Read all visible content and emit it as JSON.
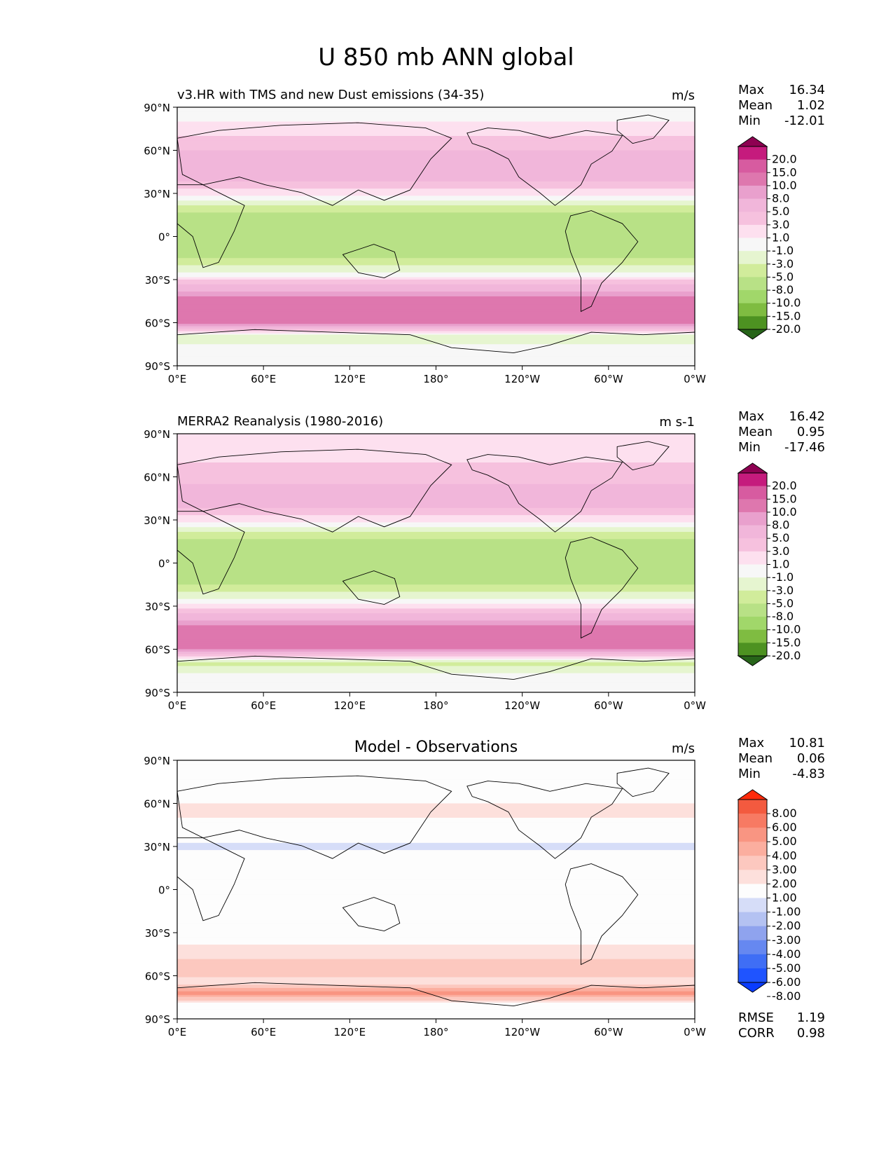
{
  "figure_title": "U 850 mb ANN global",
  "colors": {
    "seq_colors": [
      "#276419",
      "#4d9221",
      "#7fbc41",
      "#a1d76a",
      "#b8e186",
      "#d1ec9b",
      "#e6f5d0",
      "#f7f7f7",
      "#fde0ef",
      "#f6c1de",
      "#f1b6da",
      "#e9a0cd",
      "#de77ae",
      "#d75ba0",
      "#c51b7d",
      "#8e0152"
    ],
    "diff_colors": [
      "#0a3cff",
      "#1f54ff",
      "#3f6ef5",
      "#6688f0",
      "#8fa3ee",
      "#b4c2f2",
      "#d6ddf8",
      "#fdfdfd",
      "#fde0dc",
      "#fcc8bf",
      "#fbae9f",
      "#f99582",
      "#f77a63",
      "#f35a3f",
      "#ff2a0a"
    ]
  },
  "chart_data": [
    {
      "type": "contour-map",
      "id": "model",
      "title": "v3.HR with TMS and new Dust emissions (34-35)",
      "units": "m/s",
      "stats": [
        {
          "label": "Max",
          "value": "16.34"
        },
        {
          "label": "Mean",
          "value": "1.02"
        },
        {
          "label": "Min",
          "value": "-12.01"
        }
      ],
      "colorbar_levels": [
        "20.0",
        "15.0",
        "10.0",
        "8.0",
        "5.0",
        "3.0",
        "1.0",
        "-1.0",
        "-3.0",
        "-5.0",
        "-8.0",
        "-10.0",
        "-15.0",
        "-20.0"
      ],
      "xticks": [
        "0°E",
        "60°E",
        "120°E",
        "180°",
        "120°W",
        "60°W",
        "0°W"
      ],
      "yticks": [
        "90°N",
        "60°N",
        "30°N",
        "0°",
        "30°S",
        "60°S",
        "90°S"
      ],
      "lon_range": [
        0,
        360
      ],
      "lat_range": [
        -90,
        90
      ],
      "zonal_profile": [
        {
          "lat": 90,
          "u": 0
        },
        {
          "lat": 80,
          "u": 1
        },
        {
          "lat": 70,
          "u": 3
        },
        {
          "lat": 60,
          "u": 5
        },
        {
          "lat": 45,
          "u": 8
        },
        {
          "lat": 35,
          "u": 4
        },
        {
          "lat": 25,
          "u": -1
        },
        {
          "lat": 15,
          "u": -6
        },
        {
          "lat": 5,
          "u": -7
        },
        {
          "lat": -5,
          "u": -5
        },
        {
          "lat": -15,
          "u": -5
        },
        {
          "lat": -25,
          "u": -1
        },
        {
          "lat": -35,
          "u": 6
        },
        {
          "lat": -45,
          "u": 12
        },
        {
          "lat": -52,
          "u": 14
        },
        {
          "lat": -60,
          "u": 11
        },
        {
          "lat": -65,
          "u": 4
        },
        {
          "lat": -70,
          "u": -3
        },
        {
          "lat": -80,
          "u": 1
        },
        {
          "lat": -90,
          "u": 0
        }
      ]
    },
    {
      "type": "contour-map",
      "id": "obs",
      "title": "MERRA2 Reanalysis (1980-2016)",
      "units": "m s-1",
      "stats": [
        {
          "label": "Max",
          "value": "16.42"
        },
        {
          "label": "Mean",
          "value": "0.95"
        },
        {
          "label": "Min",
          "value": "-17.46"
        }
      ],
      "colorbar_levels": [
        "20.0",
        "15.0",
        "10.0",
        "8.0",
        "5.0",
        "3.0",
        "1.0",
        "-1.0",
        "-3.0",
        "-5.0",
        "-8.0",
        "-10.0",
        "-15.0",
        "-20.0"
      ],
      "xticks": [
        "0°E",
        "60°E",
        "120°E",
        "180°",
        "120°W",
        "60°W",
        "0°W"
      ],
      "yticks": [
        "90°N",
        "60°N",
        "30°N",
        "0°",
        "30°S",
        "60°S",
        "90°S"
      ],
      "lon_range": [
        0,
        360
      ],
      "lat_range": [
        -90,
        90
      ],
      "zonal_profile": [
        {
          "lat": 90,
          "u": 1
        },
        {
          "lat": 80,
          "u": 2
        },
        {
          "lat": 70,
          "u": 3
        },
        {
          "lat": 60,
          "u": 4
        },
        {
          "lat": 45,
          "u": 7
        },
        {
          "lat": 35,
          "u": 4
        },
        {
          "lat": 25,
          "u": -1
        },
        {
          "lat": 15,
          "u": -6
        },
        {
          "lat": 5,
          "u": -6
        },
        {
          "lat": -5,
          "u": -5
        },
        {
          "lat": -15,
          "u": -5
        },
        {
          "lat": -25,
          "u": -1
        },
        {
          "lat": -35,
          "u": 5
        },
        {
          "lat": -45,
          "u": 11
        },
        {
          "lat": -52,
          "u": 13
        },
        {
          "lat": -60,
          "u": 10
        },
        {
          "lat": -65,
          "u": 3
        },
        {
          "lat": -70,
          "u": -4
        },
        {
          "lat": -80,
          "u": 1
        },
        {
          "lat": -90,
          "u": 0
        }
      ]
    },
    {
      "type": "contour-map",
      "id": "diff",
      "title": "Model - Observations",
      "units": "m/s",
      "stats": [
        {
          "label": "Max",
          "value": "10.81"
        },
        {
          "label": "Mean",
          "value": "0.06"
        },
        {
          "label": "Min",
          "value": "-4.83"
        }
      ],
      "extra_stats": [
        {
          "label": "RMSE",
          "value": "1.19"
        },
        {
          "label": "CORR",
          "value": "0.98"
        }
      ],
      "colorbar_levels": [
        "8.00",
        "6.00",
        "5.00",
        "4.00",
        "3.00",
        "2.00",
        "1.00",
        "-1.00",
        "-2.00",
        "-3.00",
        "-4.00",
        "-5.00",
        "-6.00",
        "-8.00"
      ],
      "xticks": [
        "0°E",
        "60°E",
        "120°E",
        "180°",
        "120°W",
        "60°W",
        "0°W"
      ],
      "yticks": [
        "90°N",
        "60°N",
        "30°N",
        "0°",
        "30°S",
        "60°S",
        "90°S"
      ],
      "lon_range": [
        0,
        360
      ],
      "lat_range": [
        -90,
        90
      ],
      "zonal_profile": [
        {
          "lat": 90,
          "u": 0
        },
        {
          "lat": 80,
          "u": -0.5
        },
        {
          "lat": 70,
          "u": 0.5
        },
        {
          "lat": 55,
          "u": 1.2
        },
        {
          "lat": 45,
          "u": 0.8
        },
        {
          "lat": 30,
          "u": -1.2
        },
        {
          "lat": 15,
          "u": 0.3
        },
        {
          "lat": 5,
          "u": -1.1
        },
        {
          "lat": -5,
          "u": 0.4
        },
        {
          "lat": -20,
          "u": 0.2
        },
        {
          "lat": -30,
          "u": -0.8
        },
        {
          "lat": -40,
          "u": 1.3
        },
        {
          "lat": -50,
          "u": 2.2
        },
        {
          "lat": -57,
          "u": 2.6
        },
        {
          "lat": -65,
          "u": 1.2
        },
        {
          "lat": -72,
          "u": 4.5
        },
        {
          "lat": -80,
          "u": 0.4
        },
        {
          "lat": -90,
          "u": 0
        }
      ]
    }
  ]
}
